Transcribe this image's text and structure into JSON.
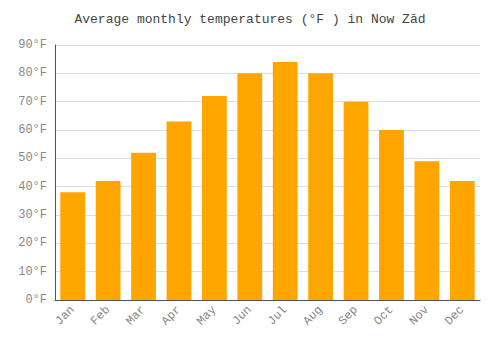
{
  "chart_data": {
    "type": "bar",
    "title": "Average monthly temperatures (°F ) in Now Zād",
    "categories": [
      "Jan",
      "Feb",
      "Mar",
      "Apr",
      "May",
      "Jun",
      "Jul",
      "Aug",
      "Sep",
      "Oct",
      "Nov",
      "Dec"
    ],
    "values": [
      38,
      42,
      52,
      63,
      72,
      80,
      84,
      80,
      70,
      60,
      49,
      42
    ],
    "color": "#FFA500",
    "ylim": [
      0,
      90
    ],
    "yticks": [
      {
        "value": 0,
        "label": "0°F"
      },
      {
        "value": 10,
        "label": "10°F"
      },
      {
        "value": 20,
        "label": "20°F"
      },
      {
        "value": 30,
        "label": "30°F"
      },
      {
        "value": 40,
        "label": "40°F"
      },
      {
        "value": 50,
        "label": "50°F"
      },
      {
        "value": 60,
        "label": "60°F"
      },
      {
        "value": 70,
        "label": "70°F"
      },
      {
        "value": 80,
        "label": "80°F"
      },
      {
        "value": 90,
        "label": "90°F"
      }
    ],
    "grid": true
  }
}
